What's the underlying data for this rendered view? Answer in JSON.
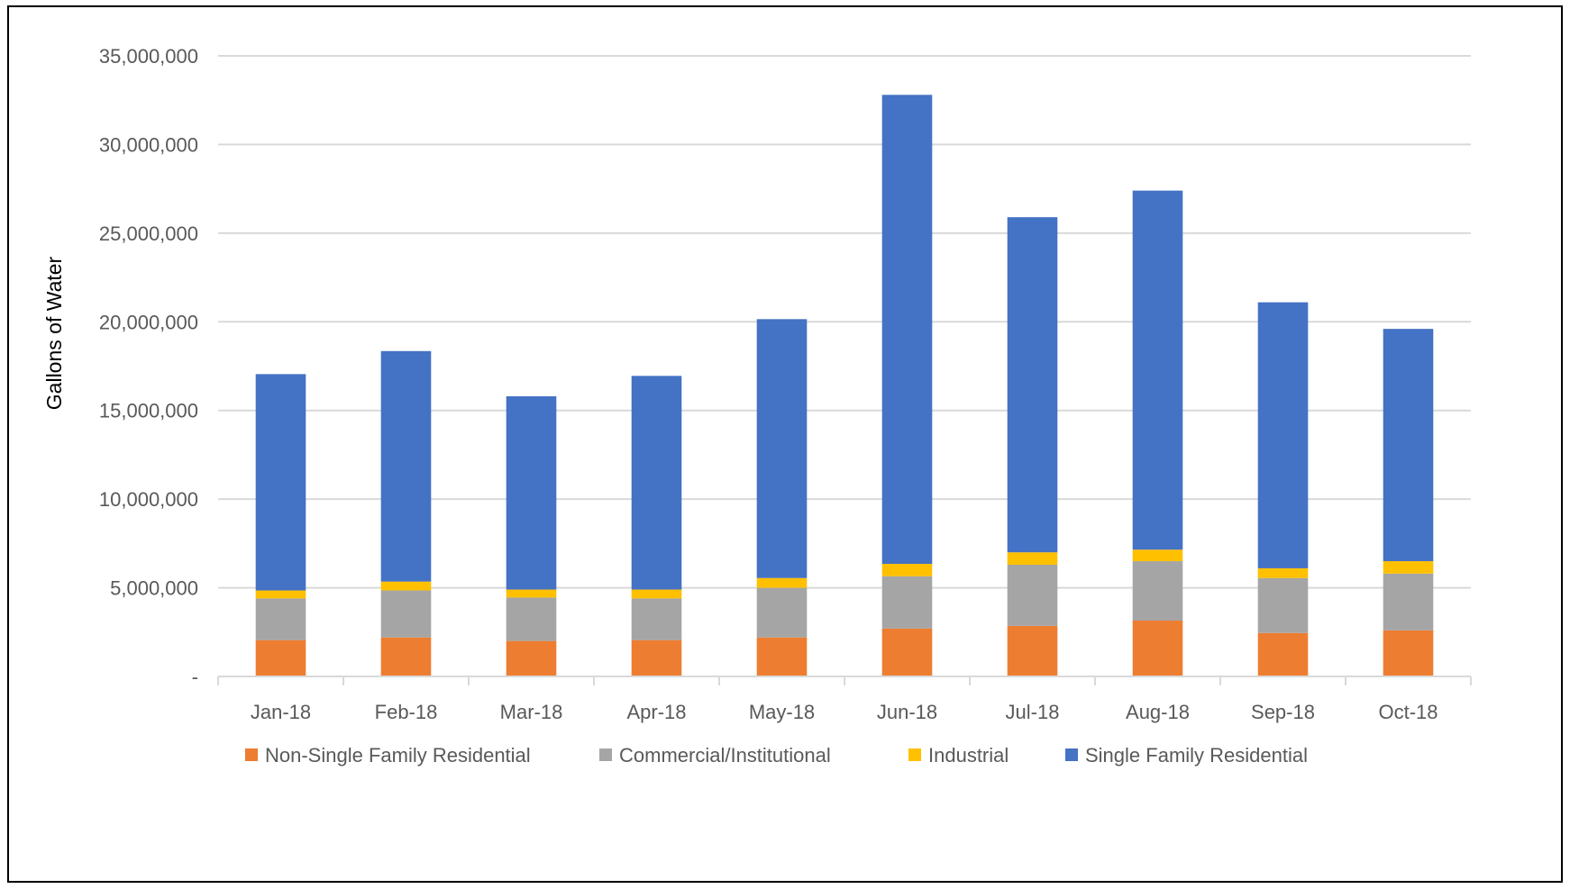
{
  "chart_data": {
    "type": "bar",
    "stacked": true,
    "title": "",
    "xlabel": "",
    "ylabel": "Gallons of Water",
    "ylim": [
      0,
      35000000
    ],
    "ytick_values": [
      0,
      5000000,
      10000000,
      15000000,
      20000000,
      25000000,
      30000000,
      35000000
    ],
    "ytick_labels": [
      "-",
      "5,000,000",
      "10,000,000",
      "15,000,000",
      "20,000,000",
      "25,000,000",
      "30,000,000",
      "35,000,000"
    ],
    "grid": true,
    "legend_position": "bottom",
    "categories": [
      "Jan-18",
      "Feb-18",
      "Mar-18",
      "Apr-18",
      "May-18",
      "Jun-18",
      "Jul-18",
      "Aug-18",
      "Sep-18",
      "Oct-18"
    ],
    "series": [
      {
        "name": "Non-Single Family Residential",
        "color": "#ED7D31",
        "values": [
          2050000,
          2200000,
          2000000,
          2050000,
          2200000,
          2700000,
          2850000,
          3150000,
          2450000,
          2600000
        ]
      },
      {
        "name": "Commercial/Institutional",
        "color": "#A5A5A5",
        "values": [
          2350000,
          2650000,
          2450000,
          2350000,
          2800000,
          2950000,
          3450000,
          3350000,
          3100000,
          3200000
        ]
      },
      {
        "name": "Industrial",
        "color": "#FFC000",
        "values": [
          450000,
          500000,
          450000,
          500000,
          550000,
          700000,
          700000,
          650000,
          550000,
          700000
        ]
      },
      {
        "name": "Single Family Residential",
        "color": "#4472C4",
        "values": [
          12200000,
          13000000,
          10900000,
          12050000,
          14600000,
          26450000,
          18900000,
          20250000,
          15000000,
          13100000
        ]
      }
    ]
  }
}
